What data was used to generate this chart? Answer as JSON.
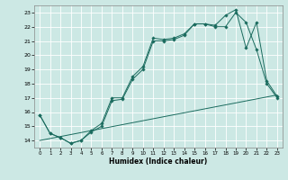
{
  "xlabel": "Humidex (Indice chaleur)",
  "bg_color": "#cce8e4",
  "line_color": "#1a6b5e",
  "grid_color": "#ffffff",
  "xlim": [
    -0.5,
    23.5
  ],
  "ylim": [
    13.5,
    23.5
  ],
  "xticks": [
    0,
    1,
    2,
    3,
    4,
    5,
    6,
    7,
    8,
    9,
    10,
    11,
    12,
    13,
    14,
    15,
    16,
    17,
    18,
    19,
    20,
    21,
    22,
    23
  ],
  "yticks": [
    14,
    15,
    16,
    17,
    18,
    19,
    20,
    21,
    22,
    23
  ],
  "line1_x": [
    0,
    1,
    2,
    3,
    4,
    5,
    6,
    7,
    8,
    9,
    10,
    11,
    12,
    13,
    14,
    15,
    16,
    17,
    18,
    19,
    20,
    21,
    22,
    23
  ],
  "line1_y": [
    15.8,
    14.5,
    14.2,
    13.8,
    14.0,
    14.7,
    15.2,
    17.0,
    17.0,
    18.5,
    19.2,
    21.2,
    21.1,
    21.2,
    21.5,
    22.2,
    22.2,
    22.1,
    22.8,
    23.2,
    20.5,
    22.3,
    18.2,
    17.1
  ],
  "line2_x": [
    0,
    1,
    2,
    3,
    4,
    5,
    6,
    7,
    8,
    9,
    10,
    11,
    12,
    13,
    14,
    15,
    16,
    17,
    18,
    19,
    20,
    21,
    22,
    23
  ],
  "line2_y": [
    15.8,
    14.5,
    14.2,
    13.8,
    14.0,
    14.6,
    15.0,
    16.8,
    16.9,
    18.3,
    19.0,
    21.0,
    21.0,
    21.1,
    21.4,
    22.2,
    22.2,
    22.0,
    22.0,
    23.0,
    22.3,
    20.4,
    18.0,
    17.0
  ],
  "line3_x": [
    0,
    23
  ],
  "line3_y": [
    14.0,
    17.2
  ]
}
